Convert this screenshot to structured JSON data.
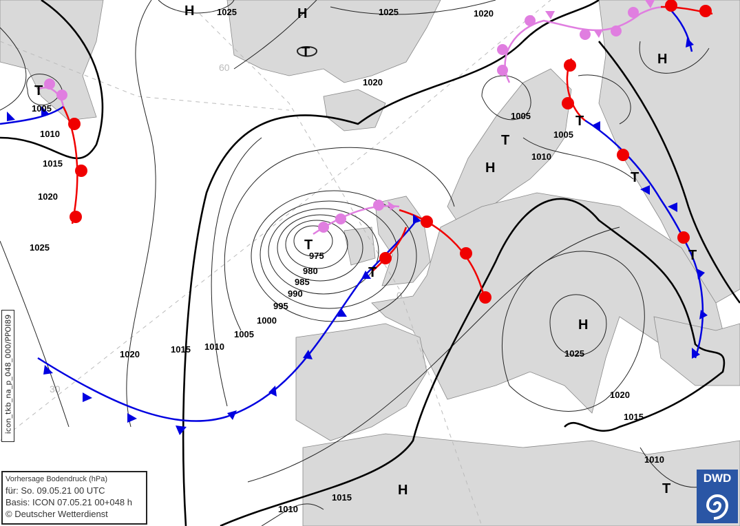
{
  "legend": {
    "title": "Vorhersage Bodendruck (hPa)",
    "valid": "für:  So. 09.05.21  00 UTC",
    "basis": "Basis: ICON  07.05.21 00+048 h",
    "copyright": "© Deutscher Wetterdienst"
  },
  "product_id": "icon_tkb_na_p_048_000/PPOI89",
  "logo": "DWD",
  "colors": {
    "cold_front": "#0000e0",
    "warm_front": "#f00000",
    "occlusion": "#e07ee0",
    "land": "#d9d9d9"
  },
  "grid_labels": [
    "60",
    "0",
    "30"
  ],
  "isobar_labels": [
    "1025",
    "1025",
    "1020",
    "1020",
    "1005",
    "1010",
    "1015",
    "1020",
    "1025",
    "1005",
    "1005",
    "1010",
    "975",
    "980",
    "985",
    "990",
    "995",
    "1000",
    "1005",
    "1010",
    "1015",
    "1020",
    "1025",
    "1020",
    "1015",
    "1015",
    "1010",
    "1010"
  ],
  "pressure_centers": [
    "H",
    "H",
    "T",
    "T",
    "T",
    "H",
    "T",
    "T",
    "T",
    "H",
    "T",
    "T",
    "H",
    "H",
    "T"
  ]
}
